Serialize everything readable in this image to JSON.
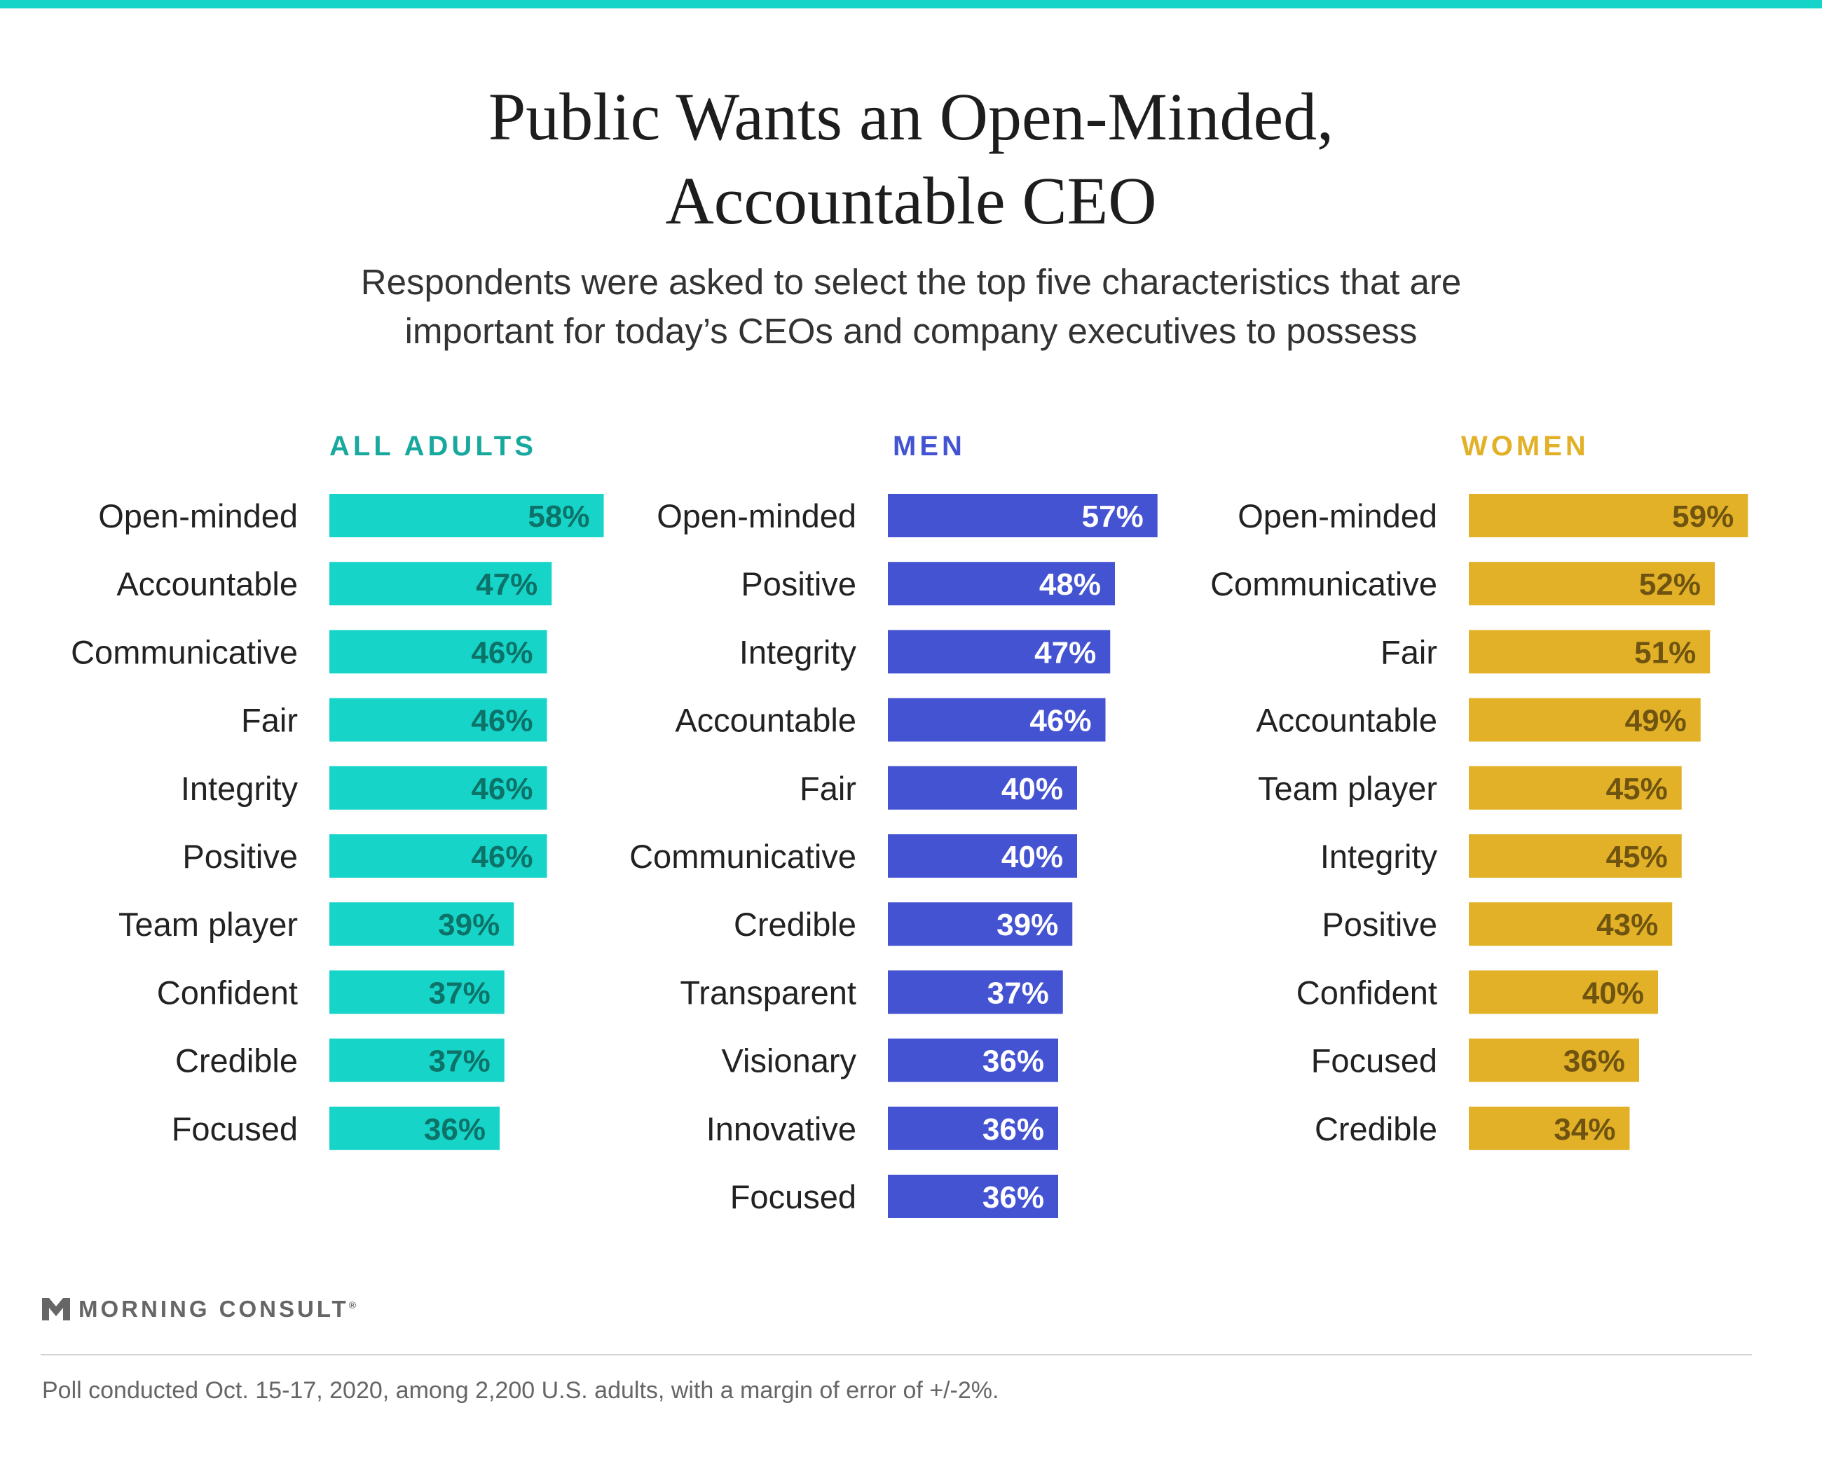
{
  "title_line1": "Public Wants an Open-Minded,",
  "title_line2": "Accountable CEO",
  "subtitle_line1": "Respondents were asked to select the top five characteristics that are",
  "subtitle_line2": "important for today’s CEOs and company executives to possess",
  "brand": "MORNING CONSULT",
  "brand_mark": "®",
  "footnote": "Poll conducted Oct. 15-17, 2020, among 2,200 U.S. adults, with a margin of error of +/-2%.",
  "colors": {
    "accent_bar": "#17d4c9",
    "all_adults": "#17d4c9",
    "all_adults_label": "#0d7268",
    "men": "#4453d2",
    "men_label": "#ffffff",
    "women": "#e3b127",
    "women_label": "#6e5410"
  },
  "chart_data": [
    {
      "type": "bar",
      "orientation": "horizontal",
      "title": "ALL ADULTS",
      "unit": "%",
      "categories": [
        "Open-minded",
        "Accountable",
        "Communicative",
        "Fair",
        "Integrity",
        "Positive",
        "Team player",
        "Confident",
        "Credible",
        "Focused"
      ],
      "values": [
        58,
        47,
        46,
        46,
        46,
        46,
        39,
        37,
        37,
        36
      ],
      "labels": [
        "58%",
        "47%",
        "46%",
        "46%",
        "46%",
        "46%",
        "39%",
        "37%",
        "37%",
        "36%"
      ]
    },
    {
      "type": "bar",
      "orientation": "horizontal",
      "title": "MEN",
      "unit": "%",
      "categories": [
        "Open-minded",
        "Positive",
        "Integrity",
        "Accountable",
        "Fair",
        "Communicative",
        "Credible",
        "Transparent",
        "Visionary",
        "Innovative",
        "Focused"
      ],
      "values": [
        57,
        48,
        47,
        46,
        40,
        40,
        39,
        37,
        36,
        36,
        36
      ],
      "labels": [
        "57%",
        "48%",
        "47%",
        "46%",
        "40%",
        "40%",
        "39%",
        "37%",
        "36%",
        "36%",
        "36%"
      ]
    },
    {
      "type": "bar",
      "orientation": "horizontal",
      "title": "WOMEN",
      "unit": "%",
      "categories": [
        "Open-minded",
        "Communicative",
        "Fair",
        "Accountable",
        "Team player",
        "Integrity",
        "Positive",
        "Confident",
        "Focused",
        "Credible"
      ],
      "values": [
        59,
        52,
        51,
        49,
        45,
        45,
        43,
        40,
        36,
        34
      ],
      "labels": [
        "59%",
        "52%",
        "51%",
        "49%",
        "45%",
        "45%",
        "43%",
        "40%",
        "36%",
        "34%"
      ]
    }
  ]
}
